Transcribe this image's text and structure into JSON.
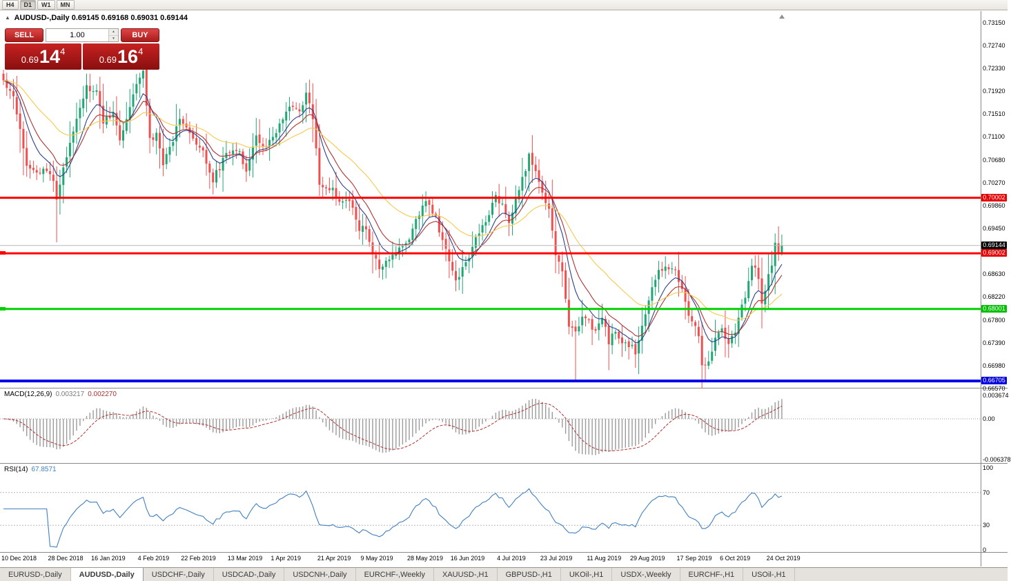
{
  "toolbar": {
    "timeframes": [
      {
        "label": "H4",
        "active": false
      },
      {
        "label": "D1",
        "active": true
      },
      {
        "label": "W1",
        "active": false
      },
      {
        "label": "MN",
        "active": false
      }
    ]
  },
  "title": {
    "symbol": "AUDUSD-,Daily",
    "ohlc": "0.69145 0.69168 0.69031 0.69144"
  },
  "trade_panel": {
    "sell_label": "SELL",
    "buy_label": "BUY",
    "volume": "1.00",
    "sell_prefix": "0.69",
    "sell_big": "14",
    "sell_sup": "4",
    "buy_prefix": "0.69",
    "buy_big": "16",
    "buy_sup": "4"
  },
  "price_axis": {
    "labels": [
      "0.73150",
      "0.72740",
      "0.72330",
      "0.71920",
      "0.71510",
      "0.71100",
      "0.70680",
      "0.70270",
      "0.69860",
      "0.69450",
      "0.68630",
      "0.68220",
      "0.67800",
      "0.67390",
      "0.66980",
      "0.66570"
    ]
  },
  "hlines": [
    {
      "value": 0.70002,
      "label": "0.70002",
      "color": "#ff0000",
      "badge": "#e80000",
      "width": 3,
      "left_marker": false
    },
    {
      "value": 0.69002,
      "label": "0.69002",
      "color": "#ff0000",
      "badge": "#e80000",
      "width": 3,
      "left_marker": true
    },
    {
      "value": 0.68001,
      "label": "0.68001",
      "color": "#00d000",
      "badge": "#00c000",
      "width": 3,
      "left_marker": true
    },
    {
      "value": 0.66705,
      "label": "0.66705",
      "color": "#0000e8",
      "badge": "#0000e0",
      "width": 4,
      "left_marker": false
    }
  ],
  "current_price": {
    "value": 0.69144,
    "label": "0.69144",
    "line_color": "#b8b8b8",
    "badge": "#000000"
  },
  "indicators": {
    "macd": {
      "name": "MACD(12,26,9)",
      "main": "0.003217",
      "signal": "0.002270",
      "axis": [
        {
          "v": 0.003674,
          "label": "0.003674"
        },
        {
          "v": 0,
          "label": "0.00"
        },
        {
          "v": -0.006378,
          "label": "-0.006378"
        }
      ]
    },
    "rsi": {
      "name": "RSI(14)",
      "value": "67.8571",
      "axis": [
        {
          "v": 100,
          "label": "100"
        },
        {
          "v": 70,
          "label": "70"
        },
        {
          "v": 30,
          "label": "30"
        },
        {
          "v": 0,
          "label": "0"
        }
      ],
      "levels": [
        70,
        30
      ]
    }
  },
  "date_axis": [
    {
      "i": 0,
      "label": "10 Dec 2018"
    },
    {
      "i": 14,
      "label": "28 Dec 2018"
    },
    {
      "i": 27,
      "label": "16 Jan 2019"
    },
    {
      "i": 41,
      "label": "4 Feb 2019"
    },
    {
      "i": 54,
      "label": "22 Feb 2019"
    },
    {
      "i": 68,
      "label": "13 Mar 2019"
    },
    {
      "i": 81,
      "label": "1 Apr 2019"
    },
    {
      "i": 95,
      "label": "21 Apr 2019"
    },
    {
      "i": 108,
      "label": "9 May 2019"
    },
    {
      "i": 122,
      "label": "28 May 2019"
    },
    {
      "i": 135,
      "label": "16 Jun 2019"
    },
    {
      "i": 149,
      "label": "4 Jul 2019"
    },
    {
      "i": 162,
      "label": "23 Jul 2019"
    },
    {
      "i": 176,
      "label": "11 Aug 2019"
    },
    {
      "i": 189,
      "label": "29 Aug 2019"
    },
    {
      "i": 203,
      "label": "17 Sep 2019"
    },
    {
      "i": 216,
      "label": "6 Oct 2019"
    },
    {
      "i": 230,
      "label": "24 Oct 2019"
    }
  ],
  "tabs": [
    {
      "label": "EURUSD-,Daily",
      "active": false
    },
    {
      "label": "AUDUSD-,Daily",
      "active": true
    },
    {
      "label": "USDCHF-,Daily",
      "active": false
    },
    {
      "label": "USDCAD-,Daily",
      "active": false
    },
    {
      "label": "USDCNH-,Daily",
      "active": false
    },
    {
      "label": "EURCHF-,Weekly",
      "active": false
    },
    {
      "label": "XAUUSD-,H1",
      "active": false
    },
    {
      "label": "GBPUSD-,H1",
      "active": false
    },
    {
      "label": "UKOil-,H1",
      "active": false
    },
    {
      "label": "USDX-,Weekly",
      "active": false
    },
    {
      "label": "EURCHF-,H1",
      "active": false
    },
    {
      "label": "USOil-,H1",
      "active": false
    }
  ],
  "chart_data": {
    "type": "candlestick",
    "symbol": "AUDUSD",
    "timeframe": "Daily",
    "count": 235,
    "price_range": [
      0.6657,
      0.7315
    ],
    "colors": {
      "bull": "#1fa874",
      "bear": "#f04f4f"
    },
    "moving_averages": [
      {
        "type": "EMA",
        "period": 8,
        "color": "#2b3f8f"
      },
      {
        "type": "EMA",
        "period": 13,
        "color": "#b03030"
      },
      {
        "type": "EMA",
        "period": 34,
        "color": "#f5c94a"
      }
    ],
    "anchors": [
      [
        0,
        0.721
      ],
      [
        3,
        0.7185
      ],
      [
        5,
        0.7125
      ],
      [
        7,
        0.7062
      ],
      [
        10,
        0.7045
      ],
      [
        14,
        0.7048
      ],
      [
        15,
        0.7032
      ],
      [
        16,
        0.6998
      ],
      [
        19,
        0.7075
      ],
      [
        22,
        0.7148
      ],
      [
        25,
        0.7198
      ],
      [
        28,
        0.7188
      ],
      [
        30,
        0.7138
      ],
      [
        33,
        0.7152
      ],
      [
        35,
        0.7105
      ],
      [
        38,
        0.7162
      ],
      [
        41,
        0.7222
      ],
      [
        42,
        0.7228
      ],
      [
        44,
        0.7102
      ],
      [
        46,
        0.7112
      ],
      [
        48,
        0.7062
      ],
      [
        51,
        0.7105
      ],
      [
        53,
        0.7148
      ],
      [
        55,
        0.7125
      ],
      [
        58,
        0.7092
      ],
      [
        60,
        0.7082
      ],
      [
        63,
        0.7032
      ],
      [
        66,
        0.7068
      ],
      [
        69,
        0.709
      ],
      [
        71,
        0.7082
      ],
      [
        73,
        0.7052
      ],
      [
        76,
        0.7108
      ],
      [
        79,
        0.7092
      ],
      [
        82,
        0.7115
      ],
      [
        86,
        0.7168
      ],
      [
        89,
        0.7152
      ],
      [
        91,
        0.7188
      ],
      [
        93,
        0.7142
      ],
      [
        95,
        0.7028
      ],
      [
        97,
        0.7012
      ],
      [
        99,
        0.7018
      ],
      [
        101,
        0.6988
      ],
      [
        104,
        0.6996
      ],
      [
        107,
        0.6945
      ],
      [
        109,
        0.6942
      ],
      [
        111,
        0.6902
      ],
      [
        113,
        0.6872
      ],
      [
        116,
        0.6888
      ],
      [
        119,
        0.6908
      ],
      [
        122,
        0.6926
      ],
      [
        125,
        0.6972
      ],
      [
        127,
        0.6998
      ],
      [
        130,
        0.6962
      ],
      [
        132,
        0.6922
      ],
      [
        136,
        0.6852
      ],
      [
        139,
        0.6882
      ],
      [
        142,
        0.6926
      ],
      [
        145,
        0.6962
      ],
      [
        148,
        0.7002
      ],
      [
        150,
        0.6988
      ],
      [
        152,
        0.6958
      ],
      [
        155,
        0.7012
      ],
      [
        158,
        0.7075
      ],
      [
        160,
        0.7042
      ],
      [
        162,
        0.7012
      ],
      [
        164,
        0.6975
      ],
      [
        166,
        0.6902
      ],
      [
        168,
        0.6862
      ],
      [
        170,
        0.6772
      ],
      [
        172,
        0.6758
      ],
      [
        174,
        0.6786
      ],
      [
        176,
        0.6782
      ],
      [
        178,
        0.6756
      ],
      [
        180,
        0.6786
      ],
      [
        182,
        0.6742
      ],
      [
        184,
        0.6762
      ],
      [
        186,
        0.6732
      ],
      [
        188,
        0.6736
      ],
      [
        190,
        0.6722
      ],
      [
        193,
        0.6792
      ],
      [
        196,
        0.6856
      ],
      [
        199,
        0.6882
      ],
      [
        202,
        0.6866
      ],
      [
        204,
        0.6832
      ],
      [
        206,
        0.6792
      ],
      [
        209,
        0.6752
      ],
      [
        210,
        0.6702
      ],
      [
        212,
        0.6706
      ],
      [
        214,
        0.6746
      ],
      [
        216,
        0.6766
      ],
      [
        218,
        0.6738
      ],
      [
        220,
        0.6762
      ],
      [
        223,
        0.6826
      ],
      [
        225,
        0.6872
      ],
      [
        226,
        0.688
      ],
      [
        228,
        0.6816
      ],
      [
        229,
        0.6832
      ],
      [
        231,
        0.6882
      ],
      [
        232,
        0.6921
      ],
      [
        233,
        0.6902
      ],
      [
        234,
        0.69144
      ]
    ],
    "wick_overrides": [
      {
        "i": 16,
        "low": 0.692
      },
      {
        "i": 42,
        "high": 0.7237
      },
      {
        "i": 91,
        "high": 0.7207
      },
      {
        "i": 113,
        "low": 0.6856
      },
      {
        "i": 136,
        "low": 0.6832
      },
      {
        "i": 158,
        "high": 0.7082
      },
      {
        "i": 172,
        "low": 0.6671
      },
      {
        "i": 182,
        "low": 0.669
      },
      {
        "i": 186,
        "low": 0.6714
      },
      {
        "i": 199,
        "high": 0.6895
      },
      {
        "i": 211,
        "low": 0.66705
      },
      {
        "i": 232,
        "high": 0.6936
      }
    ]
  }
}
